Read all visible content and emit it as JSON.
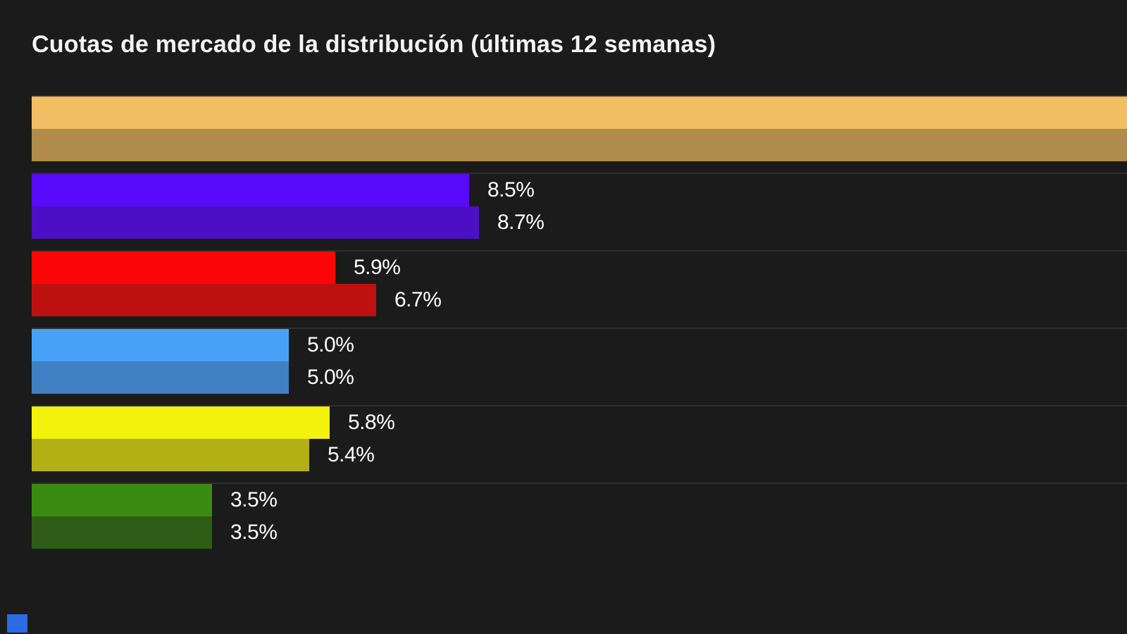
{
  "page": {
    "background": "#1b1b1b",
    "separator_color": "#2e2e2e",
    "label_text_color": "#ffffff"
  },
  "header": {
    "title": "Cuotas de mercado de la distribución (últimas 12 semanas)"
  },
  "decor": {
    "bottom_left_square_color": "#2c6be4"
  },
  "chart_data": {
    "type": "bar",
    "orientation": "horizontal",
    "title": "Cuotas de mercado de la distribución (últimas 12 semanas)",
    "xlabel": "",
    "ylabel": "",
    "legend": "none",
    "value_suffix": "%",
    "axes_visible": false,
    "grid": "faint full-width separator line at the top of each category group",
    "implied_value_axis_max_pct": 21.3,
    "note": "Six category groups, each with a pair of bars (bright = top, darker shade = bottom). First (orange) group extends past the right edge of the frame; its values/labels are not visible.",
    "groups": [
      {
        "name": "group-orange",
        "bars": [
          {
            "value": null,
            "label": "",
            "color": "#f3bd63",
            "clipped_at_right_edge": true
          },
          {
            "value": null,
            "label": "",
            "color": "#b08c4a",
            "clipped_at_right_edge": true
          }
        ]
      },
      {
        "name": "group-purple",
        "bars": [
          {
            "value": 8.5,
            "label": "8.5%",
            "color": "#5a0afa",
            "clipped_at_right_edge": false
          },
          {
            "value": 8.7,
            "label": "8.7%",
            "color": "#4b10c4",
            "clipped_at_right_edge": false
          }
        ]
      },
      {
        "name": "group-red",
        "bars": [
          {
            "value": 5.9,
            "label": "5.9%",
            "color": "#fa0606",
            "clipped_at_right_edge": false
          },
          {
            "value": 6.7,
            "label": "6.7%",
            "color": "#bd1111",
            "clipped_at_right_edge": false
          }
        ]
      },
      {
        "name": "group-blue",
        "bars": [
          {
            "value": 5.0,
            "label": "5.0%",
            "color": "#47a2f5",
            "clipped_at_right_edge": false
          },
          {
            "value": 5.0,
            "label": "5.0%",
            "color": "#3e80c2",
            "clipped_at_right_edge": false
          }
        ]
      },
      {
        "name": "group-yellow",
        "bars": [
          {
            "value": 5.8,
            "label": "5.8%",
            "color": "#f2f20d",
            "clipped_at_right_edge": false
          },
          {
            "value": 5.4,
            "label": "5.4%",
            "color": "#b3b016",
            "clipped_at_right_edge": false
          }
        ]
      },
      {
        "name": "group-green",
        "bars": [
          {
            "value": 3.5,
            "label": "3.5%",
            "color": "#3a8a10",
            "clipped_at_right_edge": false
          },
          {
            "value": 3.5,
            "label": "3.5%",
            "color": "#2f5c17",
            "clipped_at_right_edge": false
          }
        ]
      }
    ]
  }
}
